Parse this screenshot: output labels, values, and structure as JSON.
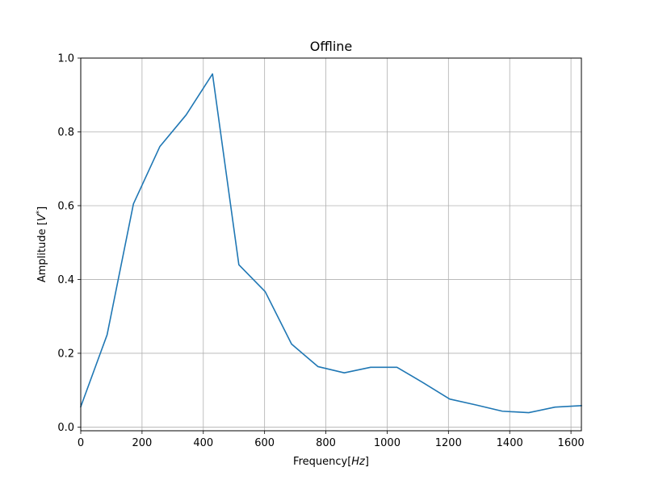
{
  "chart_data": {
    "type": "line",
    "title": "Offline",
    "xlabel": {
      "prefix": "Frequency[",
      "unit": "Hz",
      "suffix": "]"
    },
    "ylabel": {
      "prefix": "Amplitude [",
      "unit": "V",
      "superscript": "*",
      "suffix": "]"
    },
    "xlim": [
      0,
      1634
    ],
    "ylim": [
      -0.01,
      1.0
    ],
    "xticks": [
      0,
      200,
      400,
      600,
      800,
      1000,
      1200,
      1400,
      1600
    ],
    "yticks": [
      0.0,
      0.2,
      0.4,
      0.6,
      0.8,
      1.0
    ],
    "grid": true,
    "series_color": "#1f77b4",
    "series": [
      {
        "x": [
          0,
          86,
          172,
          258,
          344,
          430,
          516,
          602,
          688,
          774,
          860,
          946,
          1032,
          1118,
          1204,
          1290,
          1376,
          1462,
          1548,
          1634
        ],
        "y": [
          0.055,
          0.25,
          0.605,
          0.76,
          0.846,
          0.957,
          0.44,
          0.367,
          0.225,
          0.164,
          0.147,
          0.162,
          0.162,
          0.12,
          0.076,
          0.06,
          0.043,
          0.039,
          0.054,
          0.058
        ]
      }
    ]
  }
}
